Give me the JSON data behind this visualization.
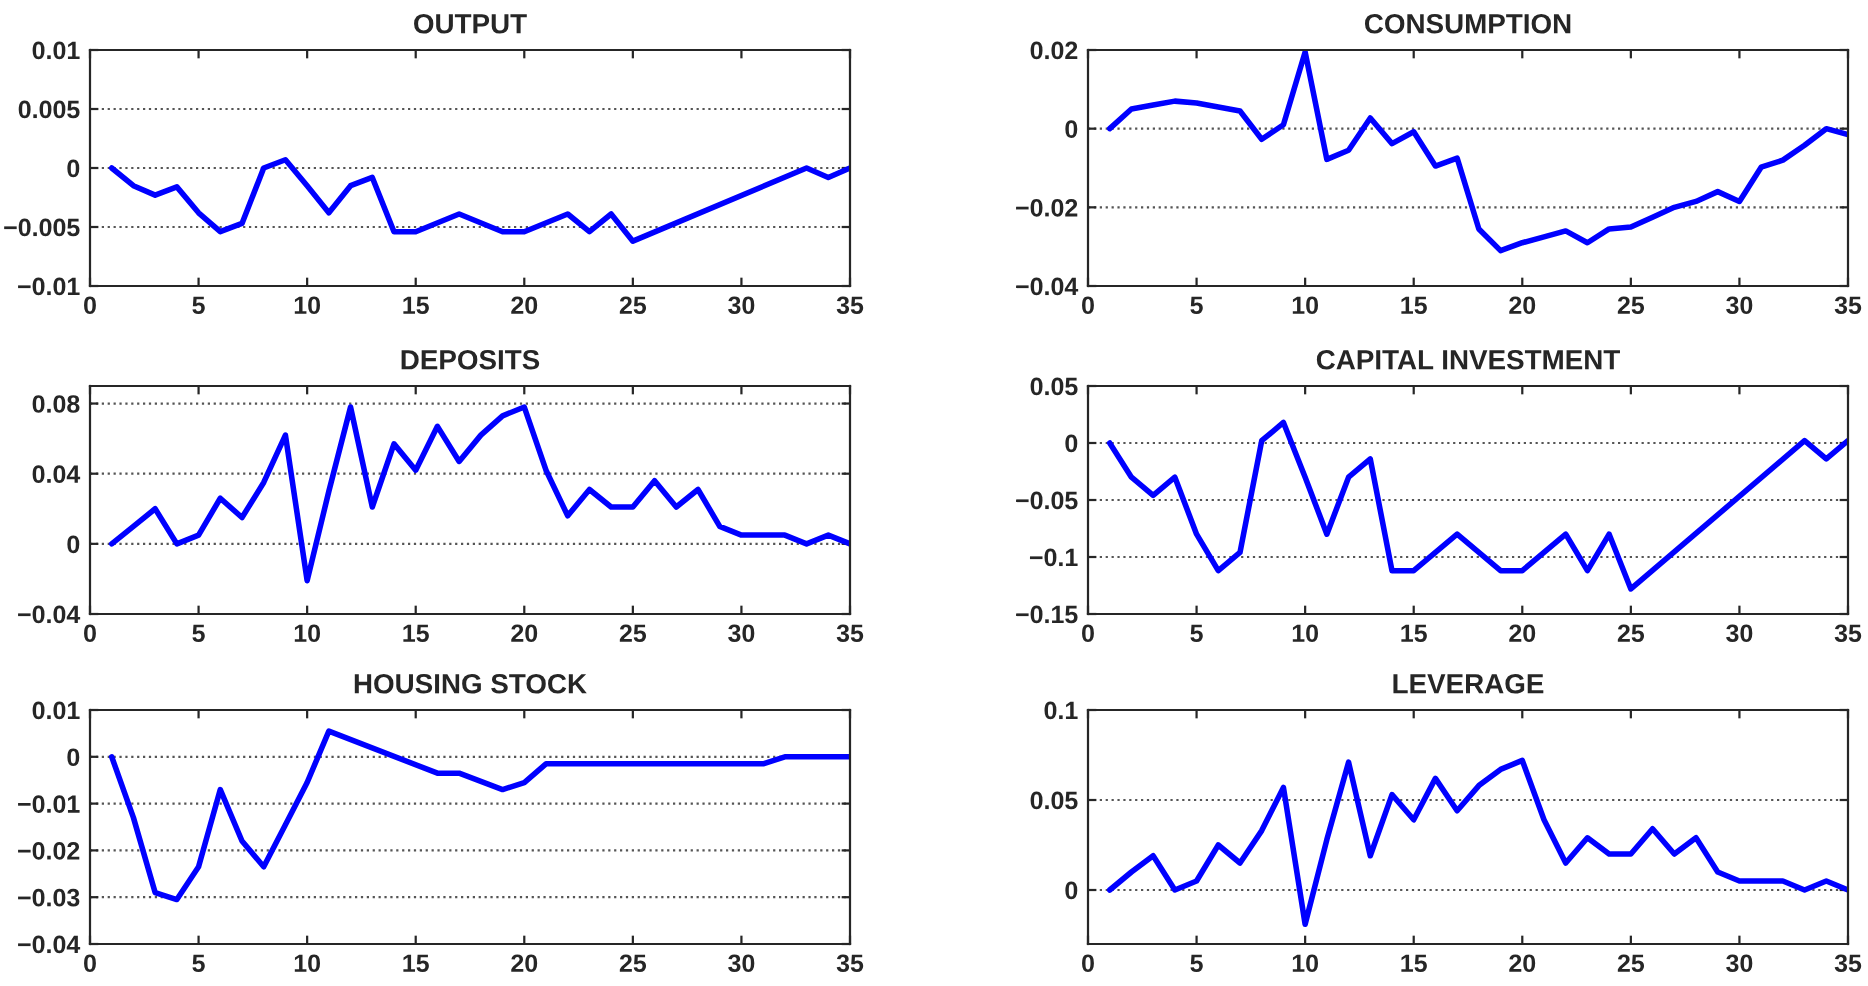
{
  "chart_data": [
    {
      "type": "line",
      "title": "OUTPUT",
      "xlim": [
        0,
        35
      ],
      "xticks": [
        0,
        5,
        10,
        15,
        20,
        25,
        30,
        35
      ],
      "ylim": [
        -0.01,
        0.01
      ],
      "yticks": [
        {
          "value": -0.01,
          "label": "−0.01"
        },
        {
          "value": -0.005,
          "label": "−0.005"
        },
        0,
        0.005,
        0.01
      ],
      "grid": "y",
      "legend": false,
      "series": [
        {
          "color": "#0000ff",
          "x": [
            1,
            2,
            3,
            4,
            5,
            6,
            7,
            8,
            9,
            10,
            11,
            12,
            13,
            14,
            15,
            17,
            19,
            20,
            22,
            23,
            24,
            25,
            33,
            34,
            35
          ],
          "values": [
            0,
            -0.0015,
            -0.0023,
            -0.0016,
            -0.0038,
            -0.0054,
            -0.0047,
            0,
            0.0007,
            -0.0015,
            -0.0038,
            -0.0015,
            -0.0008,
            -0.0054,
            -0.0054,
            -0.0039,
            -0.0054,
            -0.0054,
            -0.0039,
            -0.0054,
            -0.0039,
            -0.0062,
            0,
            -0.0008,
            0
          ]
        }
      ]
    },
    {
      "type": "line",
      "title": "CONSUMPTION",
      "xlim": [
        0,
        35
      ],
      "xticks": [
        0,
        5,
        10,
        15,
        20,
        25,
        30,
        35
      ],
      "ylim": [
        -0.04,
        0.02
      ],
      "yticks": [
        {
          "value": -0.04,
          "label": "−0.04"
        },
        {
          "value": -0.02,
          "label": "−0.02"
        },
        0,
        0.02
      ],
      "grid": "y",
      "legend": false,
      "series": [
        {
          "color": "#0000ff",
          "x": [
            1,
            2,
            3,
            4,
            5,
            6,
            7,
            8,
            9,
            10,
            11,
            12,
            13,
            14,
            15,
            16,
            17,
            18,
            19,
            20,
            21,
            22,
            23,
            24,
            25,
            26,
            27,
            28,
            29,
            30,
            31,
            32,
            33,
            34,
            35
          ],
          "values": [
            0,
            0.005,
            0.006,
            0.007,
            0.0065,
            0.0055,
            0.0045,
            -0.0027,
            0.001,
            0.0195,
            -0.0078,
            -0.0055,
            0.0027,
            -0.0038,
            -0.0008,
            -0.0095,
            -0.0075,
            -0.0255,
            -0.031,
            -0.029,
            -0.0275,
            -0.026,
            -0.029,
            -0.0255,
            -0.025,
            -0.0225,
            -0.02,
            -0.0185,
            -0.016,
            -0.0185,
            -0.0098,
            -0.008,
            -0.0042,
            0,
            -0.0015
          ]
        }
      ]
    },
    {
      "type": "line",
      "title": "DEPOSITS",
      "xlim": [
        0,
        35
      ],
      "xticks": [
        0,
        5,
        10,
        15,
        20,
        25,
        30,
        35
      ],
      "ylim": [
        -0.04,
        0.09
      ],
      "yticks": [
        {
          "value": -0.04,
          "label": "−0.04"
        },
        0,
        0.04,
        0.08
      ],
      "grid": "y",
      "legend": false,
      "series": [
        {
          "color": "#0000ff",
          "x": [
            1,
            2,
            3,
            4,
            5,
            6,
            7,
            8,
            9,
            10,
            11,
            12,
            13,
            14,
            15,
            16,
            17,
            18,
            19,
            20,
            21,
            22,
            23,
            24,
            25,
            26,
            27,
            28,
            29,
            30,
            31,
            32,
            33,
            34,
            35
          ],
          "values": [
            0,
            0.01,
            0.02,
            0,
            0.005,
            0.026,
            0.015,
            0.035,
            0.062,
            -0.021,
            0.03,
            0.078,
            0.021,
            0.057,
            0.042,
            0.067,
            0.047,
            0.062,
            0.073,
            0.078,
            0.042,
            0.016,
            0.031,
            0.021,
            0.021,
            0.036,
            0.021,
            0.031,
            0.01,
            0.005,
            0.005,
            0.005,
            0,
            0.005,
            0
          ]
        }
      ]
    },
    {
      "type": "line",
      "title": "CAPITAL INVESTMENT",
      "xlim": [
        0,
        35
      ],
      "xticks": [
        0,
        5,
        10,
        15,
        20,
        25,
        30,
        35
      ],
      "ylim": [
        -0.15,
        0.05
      ],
      "yticks": [
        {
          "value": -0.15,
          "label": "−0.15"
        },
        {
          "value": -0.1,
          "label": "−0.1"
        },
        {
          "value": -0.05,
          "label": "−0.05"
        },
        0,
        0.05
      ],
      "grid": "y",
      "legend": false,
      "series": [
        {
          "color": "#0000ff",
          "x": [
            1,
            2,
            3,
            4,
            5,
            6,
            7,
            8,
            9,
            10,
            11,
            12,
            13,
            14,
            15,
            17,
            19,
            20,
            22,
            23,
            24,
            25,
            33,
            34,
            35
          ],
          "values": [
            0,
            -0.03,
            -0.046,
            -0.03,
            -0.08,
            -0.112,
            -0.096,
            0.002,
            0.018,
            -0.03,
            -0.08,
            -0.03,
            -0.014,
            -0.112,
            -0.112,
            -0.08,
            -0.112,
            -0.112,
            -0.08,
            -0.112,
            -0.08,
            -0.128,
            0.002,
            -0.014,
            0.002
          ]
        }
      ]
    },
    {
      "type": "line",
      "title": "HOUSING STOCK",
      "xlim": [
        0,
        35
      ],
      "xticks": [
        0,
        5,
        10,
        15,
        20,
        25,
        30,
        35
      ],
      "ylim": [
        -0.04,
        0.01
      ],
      "yticks": [
        {
          "value": -0.04,
          "label": "−0.04"
        },
        {
          "value": -0.03,
          "label": "−0.03"
        },
        {
          "value": -0.02,
          "label": "−0.02"
        },
        {
          "value": -0.01,
          "label": "−0.01"
        },
        0,
        0.01
      ],
      "grid": "y",
      "legend": false,
      "series": [
        {
          "color": "#0000ff",
          "x": [
            1,
            2,
            3,
            4,
            5,
            6,
            7,
            8,
            9,
            10,
            11,
            16,
            17,
            19,
            20,
            21,
            31,
            32,
            35
          ],
          "values": [
            0,
            -0.013,
            -0.029,
            -0.0305,
            -0.0235,
            -0.007,
            -0.018,
            -0.0235,
            -0.0145,
            -0.0055,
            0.0055,
            -0.0035,
            -0.0035,
            -0.007,
            -0.0055,
            -0.0015,
            -0.0015,
            0,
            0
          ]
        }
      ]
    },
    {
      "type": "line",
      "title": "LEVERAGE",
      "xlim": [
        0,
        35
      ],
      "xticks": [
        0,
        5,
        10,
        15,
        20,
        25,
        30,
        35
      ],
      "ylim": [
        -0.03,
        0.1
      ],
      "yticks": [
        0,
        0.05,
        0.1
      ],
      "grid": "y",
      "legend": false,
      "series": [
        {
          "color": "#0000ff",
          "x": [
            1,
            2,
            3,
            4,
            5,
            6,
            7,
            8,
            9,
            10,
            11,
            12,
            13,
            14,
            15,
            16,
            17,
            18,
            19,
            20,
            21,
            22,
            23,
            24,
            25,
            26,
            27,
            28,
            29,
            30,
            31,
            32,
            33,
            34,
            35
          ],
          "values": [
            0,
            0.01,
            0.019,
            0,
            0.005,
            0.025,
            0.015,
            0.033,
            0.057,
            -0.019,
            0.028,
            0.071,
            0.019,
            0.053,
            0.039,
            0.062,
            0.044,
            0.058,
            0.067,
            0.072,
            0.039,
            0.015,
            0.029,
            0.02,
            0.02,
            0.034,
            0.02,
            0.029,
            0.01,
            0.005,
            0.005,
            0.005,
            0,
            0.005,
            0
          ]
        }
      ]
    }
  ]
}
